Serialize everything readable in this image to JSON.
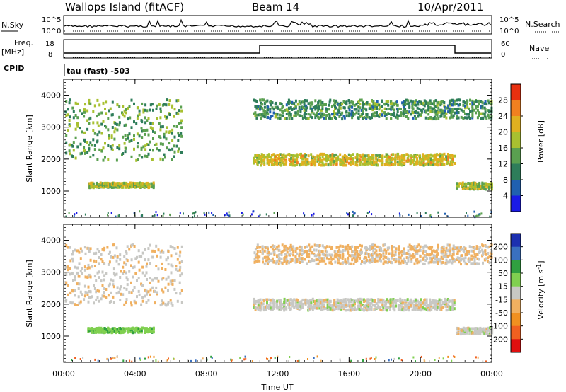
{
  "header": {
    "station": "Wallops Island (fitACF)",
    "beam": "Beam 14",
    "date": "10/Apr/2011"
  },
  "side_labels": {
    "nsky": "N.Sky",
    "nsearch": "N.Search",
    "freq": "Freq.",
    "freq_unit": "[MHz]",
    "nave": "Nave",
    "cpid": "CPID",
    "cpid_value": "tau (fast) -503"
  },
  "noise_axis": {
    "left_ticks": [
      "10^5",
      "10^0"
    ],
    "right_ticks": [
      "10^5",
      "10^0"
    ]
  },
  "freq_axis": {
    "left_ticks": [
      "18",
      "8"
    ],
    "right_ticks": [
      "60",
      "0"
    ]
  },
  "colors": {
    "power_scale": "rainbow",
    "velocity_scale": "red-orange-grey-green-blue",
    "ground_scatter": "#c8c8c4"
  },
  "chart_data": [
    {
      "type": "heatmap",
      "panel": "power",
      "ylabel": "Slant Range [km]",
      "xlabel": "Time UT",
      "xlim": [
        0,
        24
      ],
      "ylim": [
        180,
        4500
      ],
      "yticks": [
        "1000",
        "2000",
        "3000",
        "4000"
      ],
      "xticks": [
        "00:00",
        "04:00",
        "08:00",
        "12:00",
        "16:00",
        "20:00",
        "00:00"
      ],
      "colorbar": {
        "label": "Power [dB]",
        "ticks": [
          "4",
          "8",
          "12",
          "16",
          "20",
          "24",
          "28"
        ],
        "range": [
          0,
          32
        ]
      },
      "features": [
        {
          "t_start": 0.0,
          "t_end": 6.6,
          "range_start": 2000,
          "range_end": 3900,
          "value": 14
        },
        {
          "t_start": 1.3,
          "t_end": 5.0,
          "range_start": 1150,
          "range_end": 1300,
          "value": 18
        },
        {
          "t_start": 10.6,
          "t_end": 21.9,
          "range_start": 1850,
          "range_end": 2200,
          "value": 20
        },
        {
          "t_start": 10.6,
          "t_end": 24.0,
          "range_start": 3300,
          "range_end": 3900,
          "value": 12
        },
        {
          "t_start": 22.0,
          "t_end": 24.0,
          "range_start": 1100,
          "range_end": 1300,
          "value": 18
        }
      ]
    },
    {
      "type": "heatmap",
      "panel": "velocity",
      "ylabel": "Slant Range [km]",
      "xlabel": "Time UT",
      "xlim": [
        0,
        24
      ],
      "ylim": [
        180,
        4500
      ],
      "yticks": [
        "1000",
        "2000",
        "3000",
        "4000"
      ],
      "xticks": [
        "00:00",
        "04:00",
        "08:00",
        "12:00",
        "16:00",
        "20:00",
        "00:00"
      ],
      "colorbar": {
        "label": "Velocity [m s^-1]",
        "ticks": [
          "200",
          "100",
          "50",
          "15",
          "-15",
          "-50",
          "-100",
          "-200"
        ],
        "range": [
          -250,
          250
        ]
      },
      "features": [
        {
          "t_start": 0.0,
          "t_end": 6.6,
          "range_start": 2000,
          "range_end": 3900,
          "value": -10
        },
        {
          "t_start": 1.3,
          "t_end": 5.0,
          "range_start": 1150,
          "range_end": 1300,
          "value": 40
        },
        {
          "t_start": 10.6,
          "t_end": 21.9,
          "range_start": 1850,
          "range_end": 2200,
          "value": 0
        },
        {
          "t_start": 10.6,
          "t_end": 24.0,
          "range_start": 3300,
          "range_end": 3900,
          "value": -20
        },
        {
          "t_start": 22.0,
          "t_end": 24.0,
          "range_start": 1100,
          "range_end": 1300,
          "value": 0
        }
      ]
    }
  ]
}
